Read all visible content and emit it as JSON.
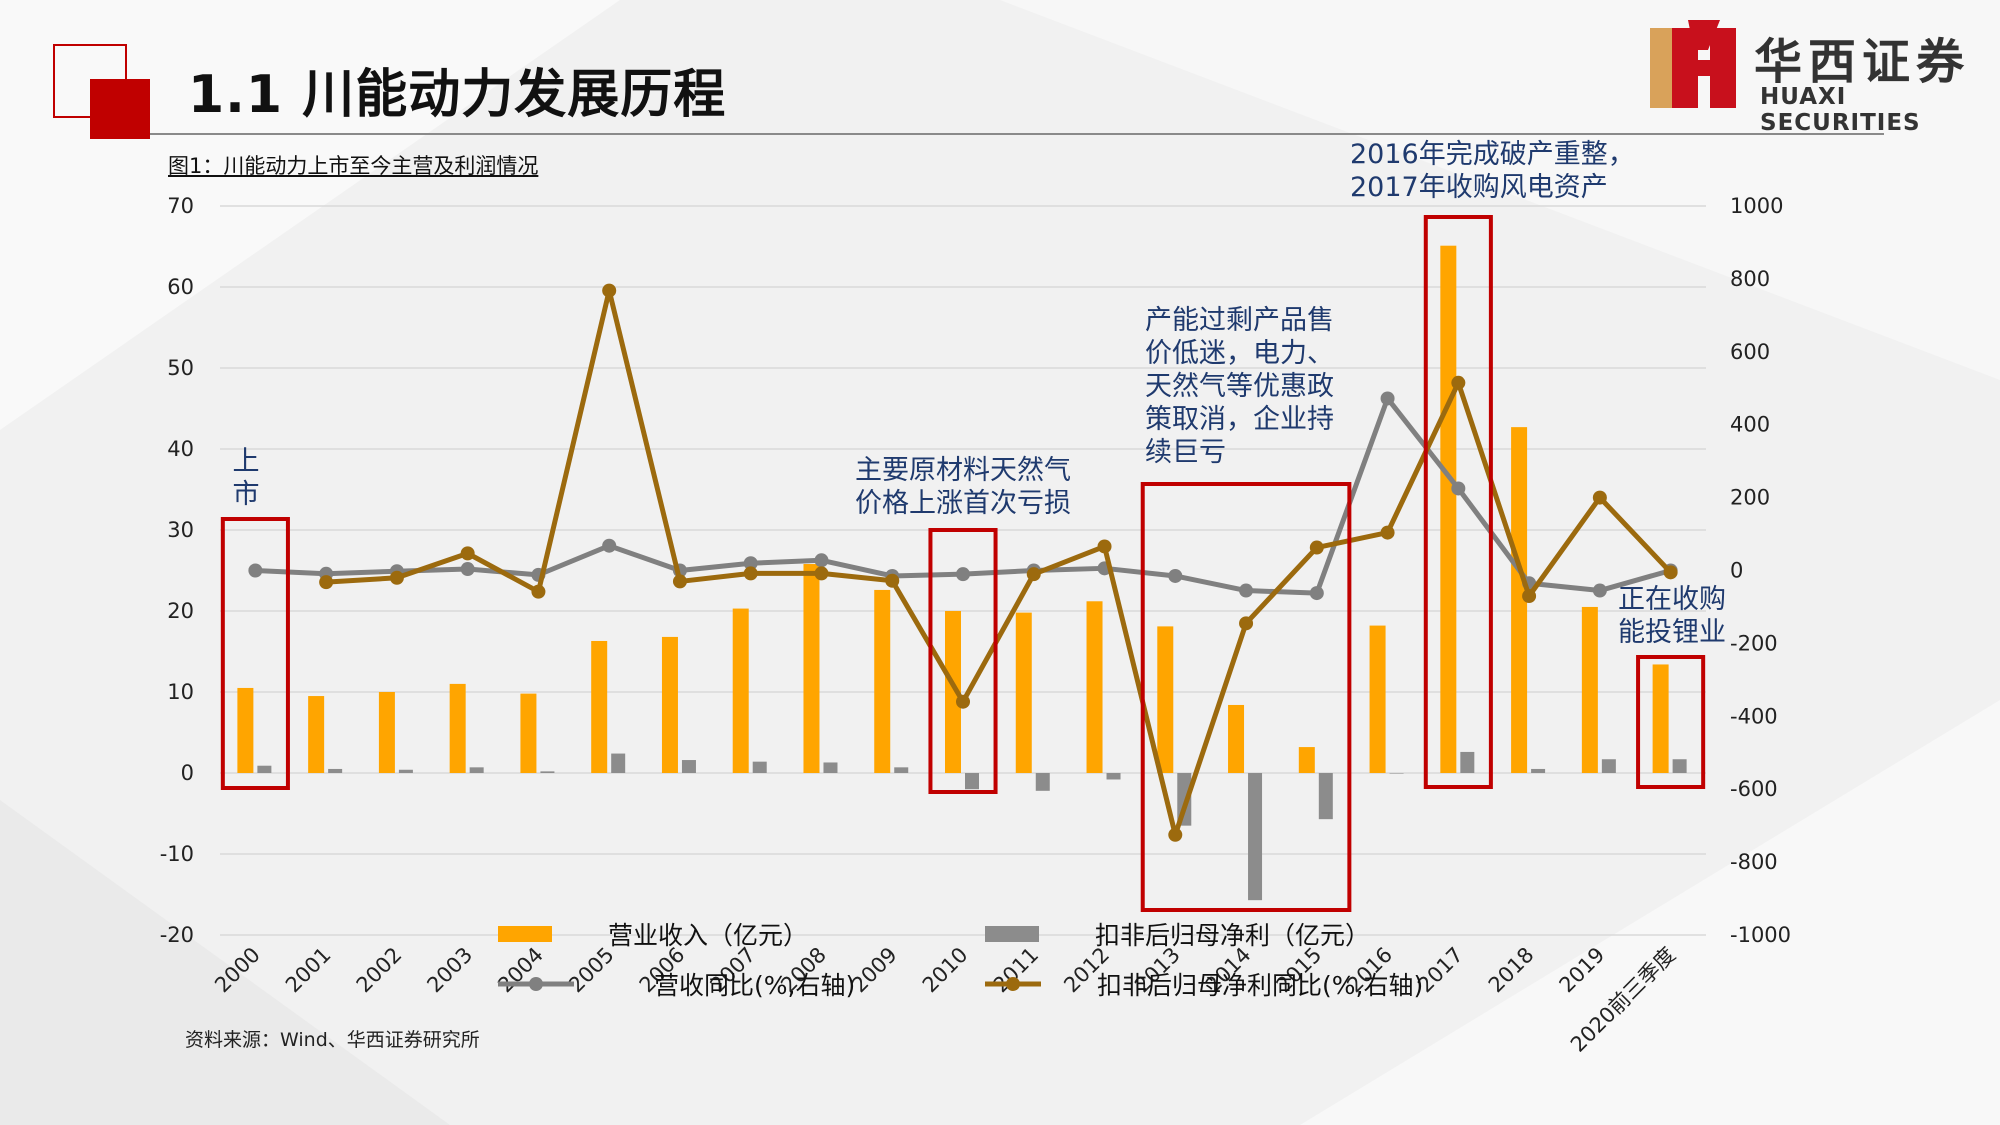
{
  "header": {
    "title": "1.1 川能动力发展历程",
    "logo_cn": "华西证券",
    "logo_en": "HUAXI SECURITIES"
  },
  "caption": "图1：川能动力上市至今主营及利润情况",
  "source": "资料来源：Wind、华西证券研究所",
  "annotations": {
    "ipo": "上\n市",
    "gas_loss": "主要原材料天然气\n价格上涨首次亏损",
    "overcapacity": "产能过剩产品售\n价低迷，电力、\n天然气等优惠政\n策取消，企业持\n续巨亏",
    "restructure": "2016年完成破产重整，\n2017年收购风电资产",
    "lithium": "正在收购\n能投锂业"
  },
  "colors": {
    "revenue": "#FFA500",
    "net_profit": "#8C8C8C",
    "revenue_yoy": "#808080",
    "profit_yoy": "#9C6A0E",
    "highlight_box": "#C00000",
    "annotation_text": "#1F3A6E",
    "logo_red": "#C8101C"
  },
  "chart_data": {
    "type": "bar",
    "categories": [
      "2000",
      "2001",
      "2002",
      "2003",
      "2004",
      "2005",
      "2006",
      "2007",
      "2008",
      "2009",
      "2010",
      "2011",
      "2012",
      "2013",
      "2014",
      "2015",
      "2016",
      "2017",
      "2018",
      "2019",
      "2020前三季度"
    ],
    "series": [
      {
        "name": "营业收入（亿元）",
        "type": "bar",
        "axis": "left",
        "values": [
          10.5,
          9.5,
          10,
          11,
          9.8,
          16.3,
          16.8,
          20.3,
          25.8,
          22.6,
          20,
          19.8,
          21.2,
          18.1,
          8.4,
          3.2,
          18.2,
          65.1,
          42.7,
          20.5,
          13.4
        ]
      },
      {
        "name": "扣非后归母净利（亿元）",
        "type": "bar",
        "axis": "left",
        "values": [
          0.9,
          0.5,
          0.4,
          0.7,
          0.2,
          2.4,
          1.6,
          1.4,
          1.3,
          0.7,
          -2,
          -2.2,
          -0.8,
          -6.5,
          -15.7,
          -5.7,
          0,
          2.6,
          0.5,
          1.7,
          1.7
        ]
      },
      {
        "name": "营收同比(%,右轴)",
        "type": "line",
        "axis": "right",
        "values": [
          0,
          -9,
          -2,
          4,
          -12,
          68,
          0,
          20,
          28,
          -15,
          -10,
          0,
          6,
          -15,
          -55,
          -62,
          472,
          225,
          -35,
          -55,
          0
        ]
      },
      {
        "name": "扣非后归母净利同比(%,右轴)",
        "type": "line",
        "axis": "right",
        "values": [
          null,
          -32,
          -20,
          47,
          -58,
          768,
          -30,
          -8,
          -8,
          -28,
          -360,
          -10,
          66,
          -725,
          -145,
          63,
          104,
          515,
          -70,
          200,
          -5
        ]
      }
    ],
    "y_left": {
      "min": -20,
      "max": 70,
      "ticks": [
        70,
        60,
        50,
        40,
        30,
        20,
        10,
        0,
        -10,
        -20
      ]
    },
    "y_right": {
      "min": -1000,
      "max": 1000,
      "ticks": [
        1000,
        800,
        600,
        400,
        200,
        0,
        -200,
        -400,
        -600,
        -800,
        -1000
      ]
    },
    "grid": true,
    "legend_position": "bottom"
  }
}
